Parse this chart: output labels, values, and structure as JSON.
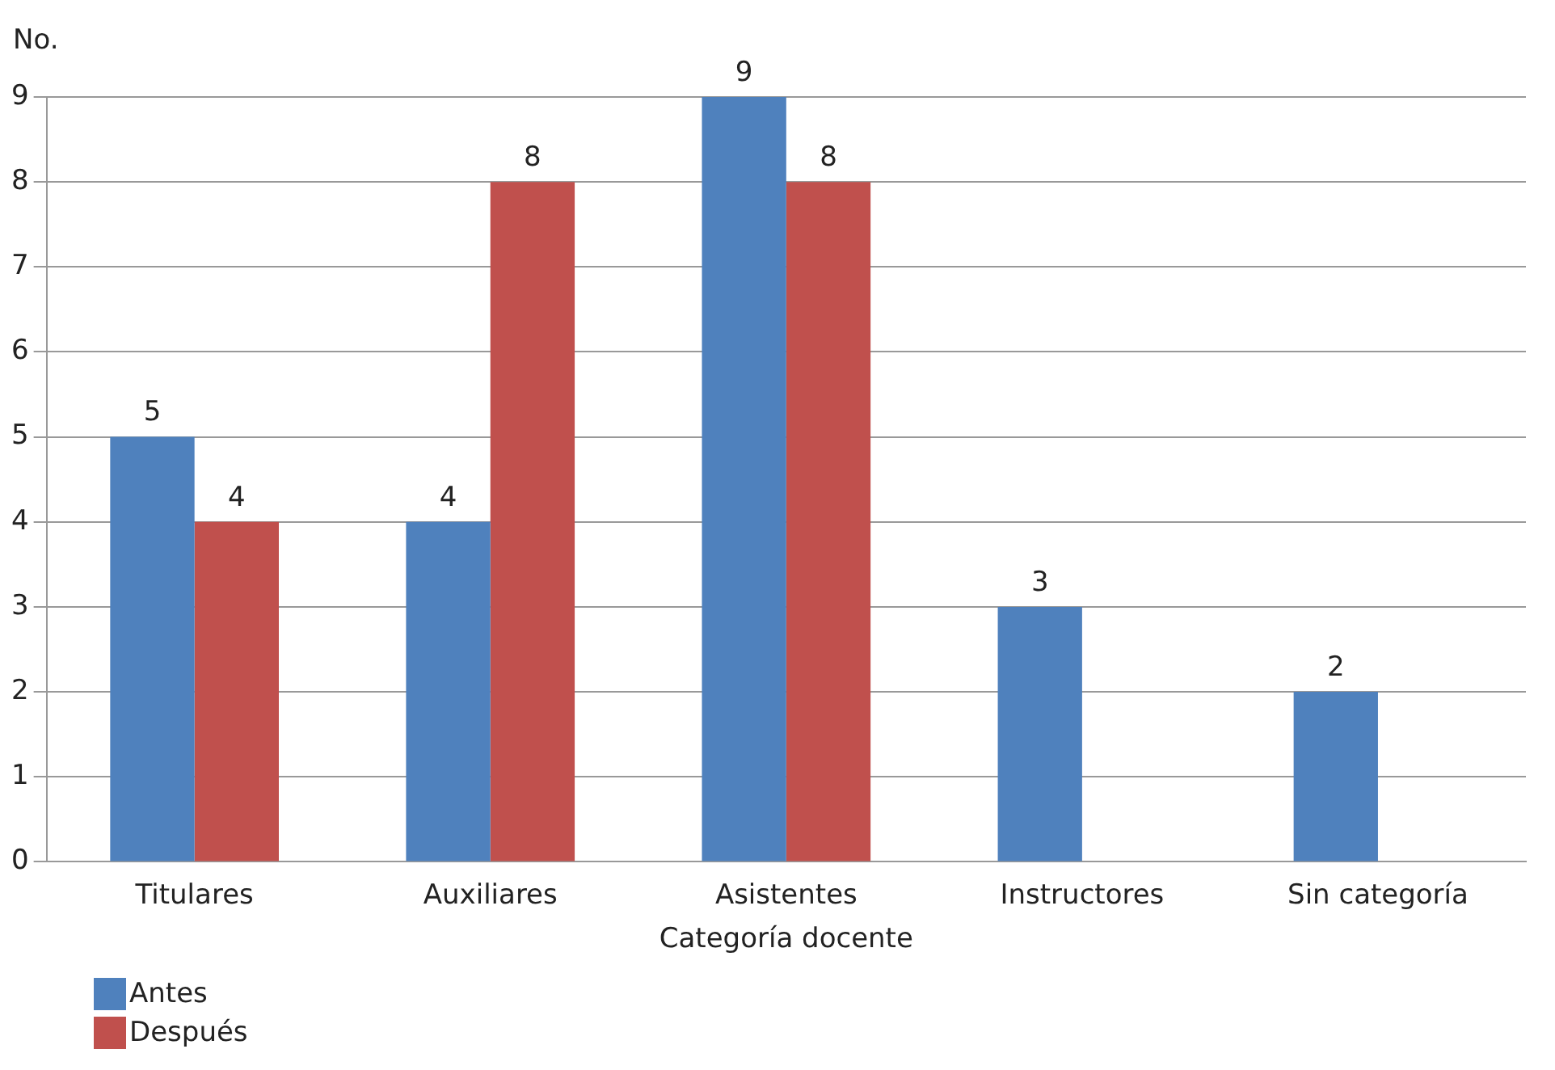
{
  "chart_data": {
    "type": "bar",
    "xlabel": "Categoría docente",
    "ylabel": "No.",
    "categories": [
      "Titulares",
      "Auxiliares",
      "Asistentes",
      "Instructores",
      "Sin categoría"
    ],
    "series": [
      {
        "name": "Antes",
        "color": "#4f81bd",
        "values": [
          5,
          4,
          9,
          3,
          2
        ]
      },
      {
        "name": "Después",
        "color": "#c0504d",
        "values": [
          4,
          8,
          8,
          null,
          null
        ]
      }
    ],
    "ylim": [
      0,
      9
    ],
    "yticks": [
      0,
      1,
      2,
      3,
      4,
      5,
      6,
      7,
      8,
      9
    ],
    "grid": "y",
    "legend": "bottom left",
    "data_labels": true
  }
}
